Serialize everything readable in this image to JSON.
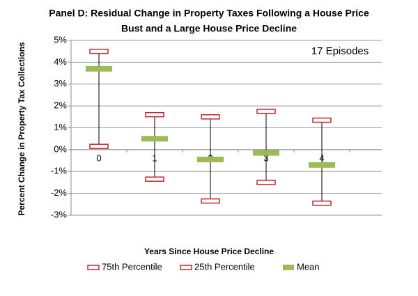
{
  "chart_data": {
    "type": "range",
    "title": "Panel D: Residual Change in Property Taxes Following a House Price",
    "subtitle": "Bust and a Large House Price Decline",
    "annotation": "17 Episodes",
    "x_label": "Years Since House Price Decline",
    "y_label": "Percent Change in Property Tax Collections",
    "categories": [
      "0",
      "1",
      "2",
      "3",
      "4"
    ],
    "series": [
      {
        "name": "75th Percentile",
        "color": "#c0272d",
        "values": [
          4.5,
          1.6,
          1.5,
          1.75,
          1.35
        ]
      },
      {
        "name": "25th Percentile",
        "color": "#c0272d",
        "values": [
          0.15,
          -1.35,
          -2.35,
          -1.5,
          -2.45
        ]
      },
      {
        "name": "Mean",
        "color": "#9bbb59",
        "values": [
          3.7,
          0.5,
          -0.45,
          -0.15,
          -0.7
        ]
      }
    ],
    "ylim": [
      -3,
      5
    ],
    "yticks": [
      {
        "value": -3,
        "label": "-3%"
      },
      {
        "value": -2,
        "label": "-2%"
      },
      {
        "value": -1,
        "label": "-1%"
      },
      {
        "value": 0,
        "label": "0%"
      },
      {
        "value": 1,
        "label": "1%"
      },
      {
        "value": 2,
        "label": "2%"
      },
      {
        "value": 3,
        "label": "3%"
      },
      {
        "value": 4,
        "label": "4%"
      },
      {
        "value": 5,
        "label": "5%"
      }
    ],
    "grid": true
  }
}
